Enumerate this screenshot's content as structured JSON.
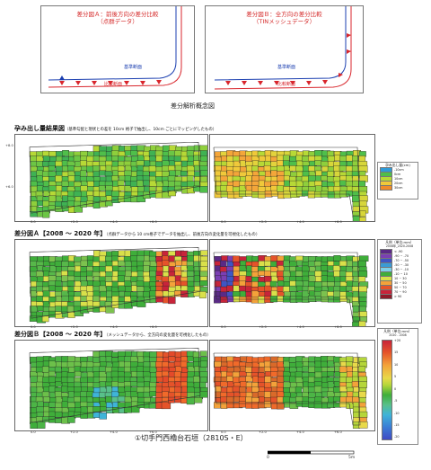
{
  "concept": {
    "diagram_a_title_1": "差分図Ａ：前後方向の差分比較",
    "diagram_a_title_2": "（点群データ）",
    "diagram_b_title_1": "差分図Ｂ：全方向の差分比較",
    "diagram_b_title_2": "（TINメッシュデータ）",
    "base_label": "基準断面",
    "compare_label": "比較断面",
    "caption": "差分解析概念図"
  },
  "sections": {
    "bulge": {
      "title": "孕み出し量結果図",
      "note": "（基準勾配と現状との差を 10cm 格子で抽出し、10cm ごとにマッピングしたもの）"
    },
    "diff_a": {
      "title": "差分図Ａ【2008 ～ 2020 年】",
      "note": "（点群データから 10 cm格子でデータを抽出し、前後方向の変化量を可視化したもの）"
    },
    "diff_b": {
      "title": "差分図Ｂ【2008 ～ 2020 年】",
      "note": "（メッシュデータから、全方向の変化量を可視化したもの）"
    }
  },
  "axis_ticks": [
    "0.0",
    "+2.0",
    "+4.0",
    "+6.0"
  ],
  "axis_ticks_right": [
    "0.0",
    "+2.0",
    "+4.0",
    "+6.0"
  ],
  "y_ticks": [
    "+8.0",
    "+6.0"
  ],
  "legends": {
    "bulge": {
      "title": "孕み出し量(cm)",
      "items": [
        {
          "label": "-10cm",
          "color": "#2f9ad6"
        },
        {
          "label": "0cm",
          "color": "#4fbf4a"
        },
        {
          "label": "10cm",
          "color": "#b7d936"
        },
        {
          "label": "20cm",
          "color": "#f0c93a"
        },
        {
          "label": "30cm",
          "color": "#f08a2a"
        }
      ]
    },
    "diff_a": {
      "title": "凡例（単位:mm）",
      "subtitle": "2008年_2020-2008",
      "items": [
        {
          "label": "< -90",
          "color": "#5a2a86"
        },
        {
          "label": "-90 ~ -70",
          "color": "#7b3fb3"
        },
        {
          "label": "-70 ~ -50",
          "color": "#3f55c4"
        },
        {
          "label": "-50 ~ -30",
          "color": "#3a9bd6"
        },
        {
          "label": "-30 ~ -10",
          "color": "#7fd0e8"
        },
        {
          "label": "-10 ~ 10",
          "color": "#3fae3a"
        },
        {
          "label": "10 ~ 30",
          "color": "#d9e04a"
        },
        {
          "label": "30 ~ 50",
          "color": "#f3a23a"
        },
        {
          "label": "50 ~ 70",
          "color": "#e5532a"
        },
        {
          "label": "70 ~ 90",
          "color": "#c8243a"
        },
        {
          "label": "> 90",
          "color": "#8e1b2a"
        }
      ]
    },
    "diff_b": {
      "title": "凡例（単位:mm）",
      "subtitle": "2020 - 2008",
      "ticks": [
        "+20",
        "15",
        "10",
        "5",
        "0",
        "-5",
        "-10",
        "-15",
        "-20"
      ]
    }
  },
  "caption": "①切手門西櫓台石垣（2810S・E）",
  "scale": {
    "start": "0",
    "end": "5m"
  }
}
